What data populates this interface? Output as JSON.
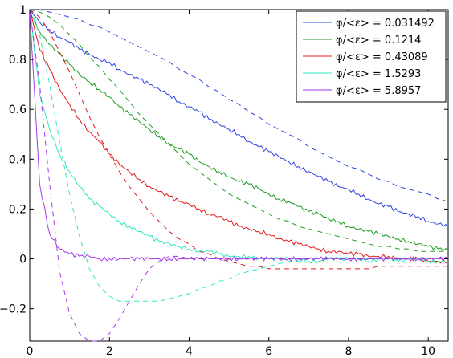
{
  "chart_data": {
    "type": "line",
    "title": "",
    "xlabel": "",
    "ylabel": "",
    "xlim": [
      0,
      10.5
    ],
    "ylim": [
      -0.33,
      1.0
    ],
    "xticks": [
      0,
      2,
      4,
      6,
      8,
      10
    ],
    "yticks": [
      -0.2,
      0,
      0.2,
      0.4,
      0.6,
      0.8,
      1
    ],
    "ytick_labels": [
      "−0.2",
      "0",
      "0.2",
      "0.4",
      "0.6",
      "0.8",
      "1"
    ],
    "grid": false,
    "legend_position": "top-right",
    "x": [
      0,
      0.25,
      0.5,
      0.75,
      1,
      1.25,
      1.5,
      1.75,
      2,
      2.25,
      2.5,
      2.75,
      3,
      3.25,
      3.5,
      3.75,
      4,
      4.25,
      4.5,
      4.75,
      5,
      5.25,
      5.5,
      5.75,
      6,
      6.25,
      6.5,
      6.75,
      7,
      7.25,
      7.5,
      7.75,
      8,
      8.25,
      8.5,
      8.75,
      9,
      9.25,
      9.5,
      9.75,
      10,
      10.25,
      10.5
    ],
    "series": [
      {
        "name": "φ/<ε> = 0.031492",
        "color": "#2b44e0",
        "simulated": [
          1,
          0.95,
          0.92,
          0.89,
          0.87,
          0.84,
          0.82,
          0.8,
          0.79,
          0.76,
          0.74,
          0.72,
          0.7,
          0.68,
          0.66,
          0.63,
          0.61,
          0.59,
          0.56,
          0.54,
          0.52,
          0.5,
          0.47,
          0.45,
          0.43,
          0.41,
          0.39,
          0.37,
          0.35,
          0.33,
          0.31,
          0.29,
          0.28,
          0.26,
          0.24,
          0.22,
          0.21,
          0.19,
          0.18,
          0.17,
          0.15,
          0.14,
          0.13
        ],
        "theory": [
          1,
          1.0,
          0.99,
          0.98,
          0.97,
          0.96,
          0.94,
          0.93,
          0.91,
          0.89,
          0.87,
          0.85,
          0.83,
          0.81,
          0.79,
          0.76,
          0.74,
          0.72,
          0.69,
          0.67,
          0.64,
          0.62,
          0.59,
          0.57,
          0.54,
          0.52,
          0.5,
          0.48,
          0.45,
          0.43,
          0.41,
          0.39,
          0.37,
          0.36,
          0.34,
          0.32,
          0.31,
          0.29,
          0.28,
          0.27,
          0.26,
          0.24,
          0.23
        ]
      },
      {
        "name": "φ/<ε> = 0.1214",
        "color": "#1f9e1f",
        "simulated": [
          1,
          0.91,
          0.86,
          0.82,
          0.78,
          0.74,
          0.71,
          0.68,
          0.65,
          0.61,
          0.58,
          0.55,
          0.52,
          0.49,
          0.46,
          0.44,
          0.42,
          0.39,
          0.37,
          0.35,
          0.33,
          0.31,
          0.3,
          0.28,
          0.26,
          0.24,
          0.23,
          0.21,
          0.19,
          0.18,
          0.16,
          0.15,
          0.13,
          0.12,
          0.11,
          0.1,
          0.09,
          0.08,
          0.07,
          0.06,
          0.05,
          0.04,
          0.035
        ],
        "theory": [
          1,
          0.99,
          0.97,
          0.94,
          0.9,
          0.86,
          0.81,
          0.77,
          0.72,
          0.68,
          0.63,
          0.58,
          0.54,
          0.5,
          0.46,
          0.42,
          0.38,
          0.35,
          0.32,
          0.29,
          0.26,
          0.24,
          0.22,
          0.2,
          0.18,
          0.16,
          0.15,
          0.13,
          0.12,
          0.11,
          0.1,
          0.09,
          0.08,
          0.07,
          0.06,
          0.05,
          0.05,
          0.04,
          0.04,
          0.03,
          0.03,
          0.03,
          0.03
        ]
      },
      {
        "name": "φ/<ε> = 0.43089",
        "color": "#e31a1c",
        "simulated": [
          1,
          0.84,
          0.76,
          0.68,
          0.62,
          0.56,
          0.51,
          0.47,
          0.42,
          0.38,
          0.35,
          0.32,
          0.29,
          0.27,
          0.25,
          0.23,
          0.22,
          0.2,
          0.18,
          0.17,
          0.15,
          0.13,
          0.12,
          0.11,
          0.1,
          0.08,
          0.07,
          0.06,
          0.05,
          0.04,
          0.03,
          0.03,
          0.02,
          0.02,
          0.01,
          0.01,
          0.01,
          0.0,
          0.0,
          0.0,
          -0.01,
          -0.01,
          -0.01
        ],
        "theory": [
          1,
          0.97,
          0.91,
          0.83,
          0.75,
          0.66,
          0.57,
          0.49,
          0.42,
          0.35,
          0.29,
          0.24,
          0.19,
          0.15,
          0.11,
          0.08,
          0.06,
          0.03,
          0.02,
          0.0,
          -0.01,
          -0.02,
          -0.03,
          -0.03,
          -0.04,
          -0.04,
          -0.04,
          -0.04,
          -0.04,
          -0.04,
          -0.04,
          -0.04,
          -0.04,
          -0.04,
          -0.04,
          -0.03,
          -0.03,
          -0.03,
          -0.03,
          -0.03,
          -0.03,
          -0.03,
          -0.03
        ]
      },
      {
        "name": "φ/<ε> = 1.5293",
        "color": "#2ee8c2",
        "simulated": [
          1,
          0.66,
          0.52,
          0.42,
          0.35,
          0.29,
          0.24,
          0.21,
          0.18,
          0.15,
          0.13,
          0.11,
          0.09,
          0.07,
          0.06,
          0.05,
          0.04,
          0.03,
          0.03,
          0.02,
          0.01,
          0.01,
          0.01,
          0.0,
          0.0,
          0.0,
          0.0,
          0.0,
          -0.01,
          -0.01,
          0.0,
          0.0,
          0.0,
          0.0,
          -0.01,
          0.0,
          0.0,
          -0.01,
          0.0,
          0.0,
          -0.01,
          -0.01,
          -0.01
        ],
        "theory": [
          1,
          0.9,
          0.7,
          0.47,
          0.26,
          0.09,
          -0.04,
          -0.11,
          -0.15,
          -0.17,
          -0.17,
          -0.17,
          -0.17,
          -0.17,
          -0.16,
          -0.15,
          -0.14,
          -0.12,
          -0.11,
          -0.09,
          -0.08,
          -0.06,
          -0.05,
          -0.04,
          -0.03,
          -0.02,
          -0.01,
          -0.01,
          0.0,
          0.0,
          0.0,
          0.0,
          0.0,
          0.0,
          0.0,
          0.0,
          0.0,
          0.0,
          0.0,
          0.0,
          0.0,
          0.0,
          0.0
        ]
      },
      {
        "name": "φ/<ε> = 5.8957",
        "color": "#a638e8",
        "simulated": [
          1,
          0.3,
          0.1,
          0.04,
          0.02,
          0.01,
          0.01,
          0.0,
          0.0,
          0.0,
          0.0,
          0.0,
          0.0,
          0.0,
          0.0,
          0.0,
          0.0,
          0.0,
          0.0,
          0.0,
          0.0,
          0.0,
          0.0,
          0.0,
          0.0,
          0.0,
          0.0,
          0.0,
          0.0,
          0.0,
          0.0,
          0.0,
          0.0,
          0.0,
          0.0,
          0.0,
          0.0,
          0.0,
          0.0,
          0.0,
          0.0,
          0.0,
          0.0
        ],
        "theory": [
          1,
          0.7,
          0.3,
          -0.05,
          -0.22,
          -0.3,
          -0.33,
          -0.33,
          -0.3,
          -0.24,
          -0.17,
          -0.1,
          -0.04,
          -0.01,
          0.01,
          0.01,
          0.0,
          0.0,
          0.0,
          0.0,
          0.0,
          0.0,
          0.0,
          0.0,
          0.0,
          0.0,
          0.0,
          0.0,
          0.0,
          0.0,
          0.0,
          0.0,
          0.0,
          0.0,
          0.0,
          0.0,
          0.0,
          0.0,
          0.0,
          0.0,
          0.0,
          0.0,
          0.0
        ]
      }
    ]
  }
}
